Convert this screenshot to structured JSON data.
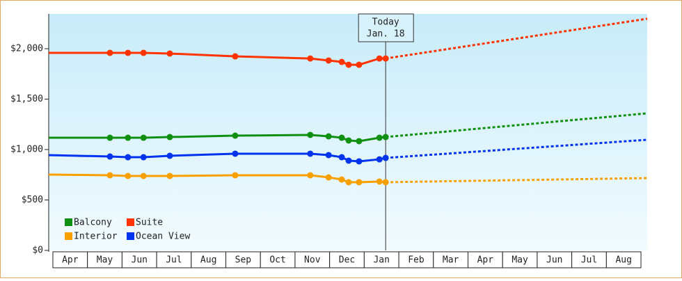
{
  "chart_data": {
    "type": "line",
    "x": [
      -0.12,
      1.65,
      2.17,
      2.62,
      3.38,
      5.27,
      7.44,
      7.97,
      8.35,
      8.55,
      8.85,
      9.44,
      9.62
    ],
    "forecast_x": [
      9.62,
      17.18
    ],
    "series": [
      {
        "name": "Balcony",
        "color": "#109010",
        "values": [
          1117,
          1117,
          1117,
          1117,
          1124,
          1138,
          1145,
          1131,
          1117,
          1090,
          1083,
          1117,
          1124
        ],
        "forecast": [
          1124,
          1359
        ]
      },
      {
        "name": "Suite",
        "color": "#ff3300",
        "values": [
          1959,
          1959,
          1959,
          1959,
          1952,
          1924,
          1903,
          1883,
          1869,
          1841,
          1841,
          1903,
          1903
        ],
        "forecast": [
          1903,
          2297
        ]
      },
      {
        "name": "Interior",
        "color": "#f8a000",
        "values": [
          752,
          745,
          738,
          738,
          738,
          745,
          745,
          724,
          703,
          676,
          676,
          683,
          676
        ],
        "forecast": [
          676,
          717
        ]
      },
      {
        "name": "Ocean View",
        "color": "#0033ee",
        "values": [
          945,
          931,
          924,
          924,
          938,
          959,
          959,
          945,
          924,
          890,
          883,
          903,
          917
        ],
        "forecast": [
          917,
          1097
        ]
      }
    ],
    "xlim": [
      -0.12,
      17.18
    ],
    "xticks": [
      {
        "value": 0.5,
        "label": "Apr"
      },
      {
        "value": 1.5,
        "label": "May"
      },
      {
        "value": 2.5,
        "label": "Jun"
      },
      {
        "value": 3.5,
        "label": "Jul"
      },
      {
        "value": 4.5,
        "label": "Aug"
      },
      {
        "value": 5.5,
        "label": "Sep"
      },
      {
        "value": 6.5,
        "label": "Oct"
      },
      {
        "value": 7.5,
        "label": "Nov"
      },
      {
        "value": 8.5,
        "label": "Dec"
      },
      {
        "value": 9.5,
        "label": "Jan"
      },
      {
        "value": 10.5,
        "label": "Feb"
      },
      {
        "value": 11.5,
        "label": "Mar"
      },
      {
        "value": 12.5,
        "label": "Apr"
      },
      {
        "value": 13.5,
        "label": "May"
      },
      {
        "value": 14.5,
        "label": "Jun"
      },
      {
        "value": 15.5,
        "label": "Jul"
      },
      {
        "value": 16.5,
        "label": "Aug"
      }
    ],
    "ylim": [
      0,
      2345
    ],
    "yticks": [
      {
        "value": 0,
        "label": "$0"
      },
      {
        "value": 500,
        "label": "$500"
      },
      {
        "value": 1000,
        "label": "$1,000"
      },
      {
        "value": 1500,
        "label": "$1,500"
      },
      {
        "value": 2000,
        "label": "$2,000"
      }
    ],
    "annotation": {
      "x": 9.62,
      "lines": [
        "Today",
        "Jan. 18"
      ]
    }
  }
}
